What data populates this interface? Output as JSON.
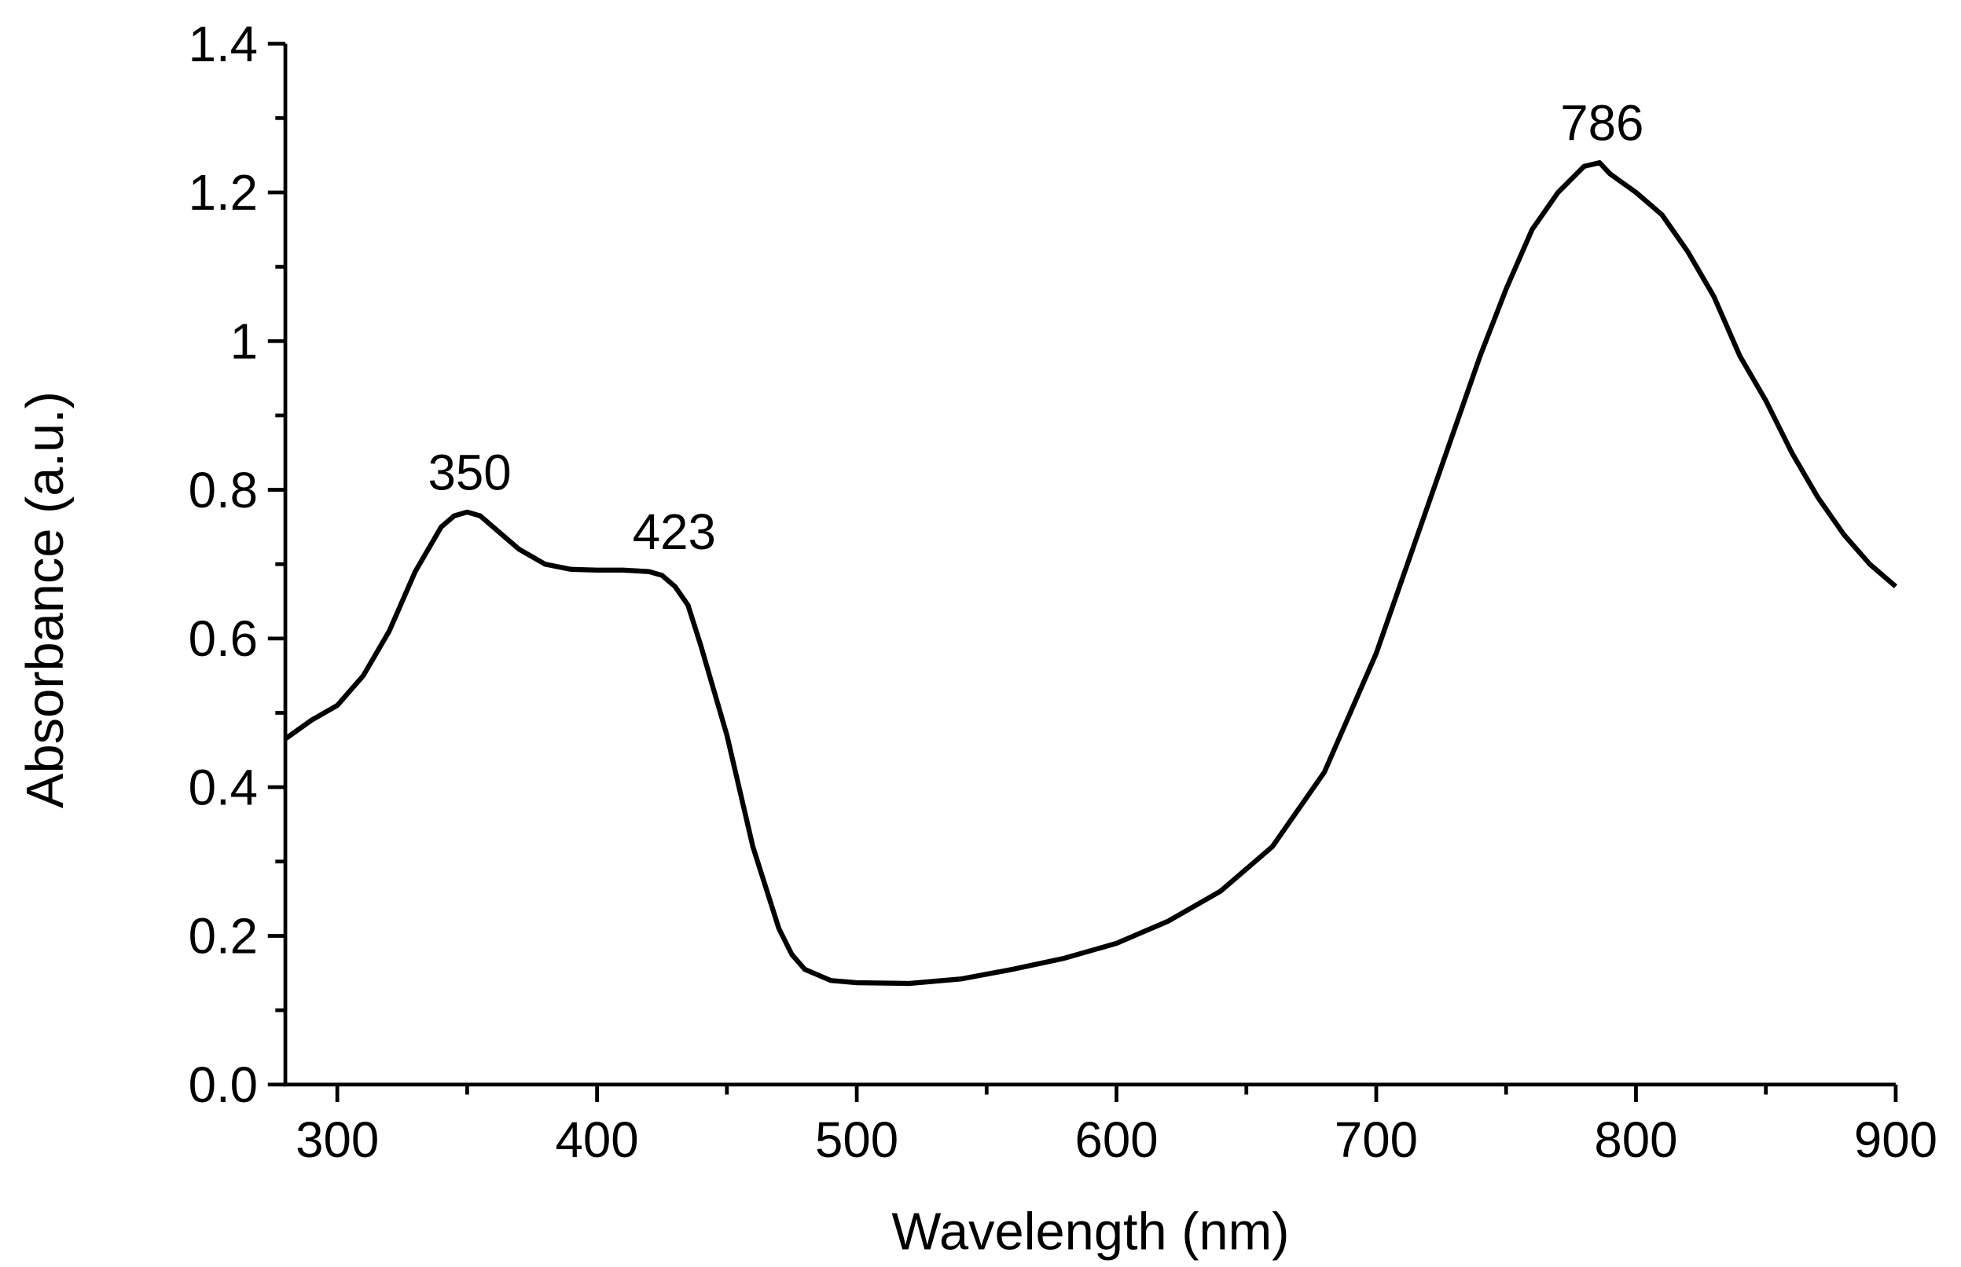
{
  "chart_data": {
    "type": "line",
    "x_label": "Wavelength (nm)",
    "y_label": "Absorbance (a.u.)",
    "xlim": [
      280,
      900
    ],
    "ylim": [
      0,
      1.4
    ],
    "xticks": [
      300,
      400,
      500,
      600,
      700,
      800,
      900
    ],
    "yticks": [
      {
        "value": 0,
        "label": "0.0"
      },
      0.2,
      0.4,
      0.6,
      0.8,
      1.0,
      1.2,
      1.4
    ],
    "xminorticks": [
      350,
      450,
      550,
      650,
      750,
      850
    ],
    "yminorticks": [
      0.1,
      0.3,
      0.5,
      0.7,
      0.9,
      1.1,
      1.3
    ],
    "grid": false,
    "series": [
      {
        "color": "#000000",
        "x": [
          280,
          290,
          300,
          310,
          320,
          330,
          340,
          345,
          350,
          355,
          360,
          370,
          380,
          390,
          400,
          410,
          420,
          425,
          430,
          435,
          440,
          450,
          460,
          470,
          475,
          480,
          490,
          500,
          520,
          540,
          560,
          580,
          600,
          620,
          640,
          660,
          680,
          700,
          720,
          740,
          750,
          760,
          770,
          780,
          786,
          790,
          800,
          810,
          820,
          830,
          840,
          850,
          860,
          870,
          880,
          890,
          900
        ],
        "values": [
          0.465,
          0.49,
          0.51,
          0.55,
          0.61,
          0.69,
          0.75,
          0.765,
          0.77,
          0.765,
          0.75,
          0.72,
          0.7,
          0.693,
          0.692,
          0.692,
          0.69,
          0.685,
          0.67,
          0.645,
          0.59,
          0.47,
          0.32,
          0.21,
          0.175,
          0.155,
          0.14,
          0.137,
          0.136,
          0.142,
          0.155,
          0.17,
          0.19,
          0.22,
          0.26,
          0.32,
          0.42,
          0.58,
          0.78,
          0.98,
          1.07,
          1.15,
          1.2,
          1.235,
          1.24,
          1.225,
          1.2,
          1.17,
          1.12,
          1.06,
          0.98,
          0.92,
          0.85,
          0.79,
          0.74,
          0.7,
          0.67
        ]
      }
    ],
    "annotations": [
      {
        "text": "350",
        "x": 350,
        "y": 0.77
      },
      {
        "text": "423",
        "x": 423,
        "y": 0.69
      },
      {
        "text": "786",
        "x": 786,
        "y": 1.24
      }
    ]
  }
}
